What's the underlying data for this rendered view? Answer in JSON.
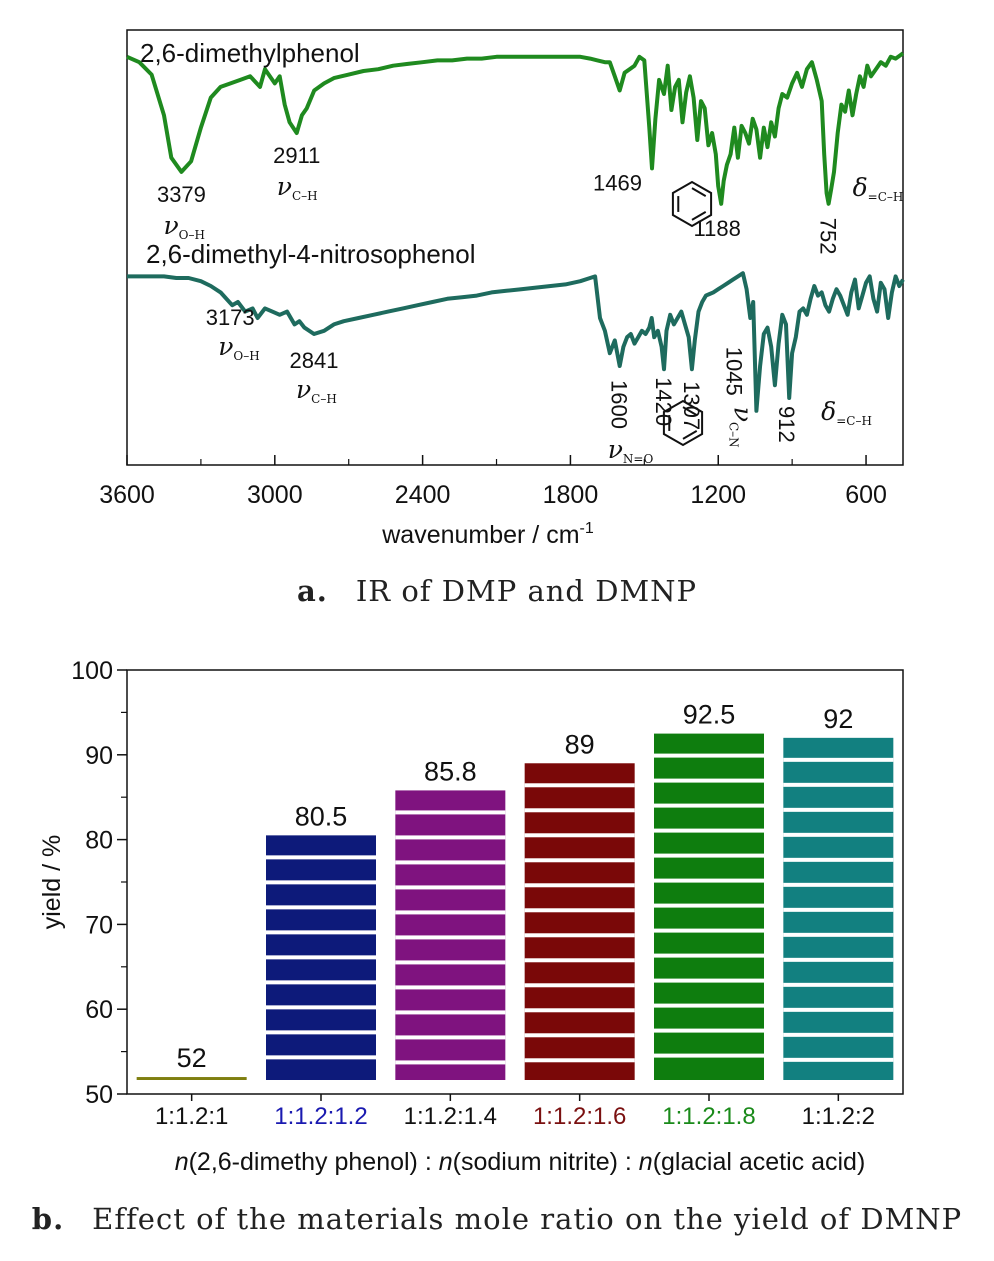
{
  "captions": {
    "a_letter": "a.",
    "a_text": "IR of DMP and DMNP",
    "b_letter": "b.",
    "b_text": "Effect of the materials mole ratio on the yield of DMNP"
  },
  "chart_data": [
    {
      "type": "line",
      "xlabel": "wavenumber / cm",
      "xlabel_sup": "-1",
      "xlim": [
        3600,
        450
      ],
      "x_ticks": [
        "3600",
        "3000",
        "2400",
        "1800",
        "1200",
        "600"
      ],
      "y_ticks_shown": false,
      "grid": false,
      "series": [
        {
          "name": "2,6-dimethylphenol",
          "color": "#1f8a1f",
          "x": [
            3600,
            3550,
            3500,
            3450,
            3420,
            3379,
            3340,
            3300,
            3260,
            3220,
            3180,
            3140,
            3100,
            3060,
            3040,
            3000,
            2980,
            2960,
            2940,
            2911,
            2890,
            2870,
            2840,
            2800,
            2760,
            2700,
            2640,
            2580,
            2520,
            2460,
            2400,
            2340,
            2280,
            2220,
            2160,
            2100,
            2040,
            1980,
            1920,
            1860,
            1800,
            1760,
            1720,
            1690,
            1660,
            1640,
            1620,
            1600,
            1580,
            1560,
            1540,
            1520,
            1500,
            1480,
            1469,
            1455,
            1440,
            1420,
            1405,
            1390,
            1375,
            1360,
            1345,
            1330,
            1315,
            1300,
            1285,
            1270,
            1255,
            1240,
            1225,
            1210,
            1200,
            1188,
            1178,
            1165,
            1150,
            1135,
            1120,
            1105,
            1090,
            1075,
            1060,
            1045,
            1030,
            1015,
            1000,
            985,
            970,
            955,
            940,
            920,
            900,
            880,
            860,
            840,
            820,
            800,
            780,
            770,
            760,
            752,
            742,
            730,
            715,
            700,
            685,
            670,
            655,
            640,
            625,
            610,
            595,
            580,
            560,
            540,
            520,
            500,
            480,
            460,
            450
          ],
          "y": [
            0.95,
            0.92,
            0.85,
            0.62,
            0.38,
            0.3,
            0.36,
            0.55,
            0.72,
            0.78,
            0.8,
            0.82,
            0.84,
            0.78,
            0.88,
            0.8,
            0.84,
            0.68,
            0.58,
            0.52,
            0.62,
            0.66,
            0.76,
            0.8,
            0.83,
            0.85,
            0.87,
            0.88,
            0.9,
            0.91,
            0.92,
            0.93,
            0.93,
            0.94,
            0.94,
            0.95,
            0.95,
            0.95,
            0.95,
            0.95,
            0.95,
            0.95,
            0.94,
            0.93,
            0.92,
            0.92,
            0.84,
            0.76,
            0.86,
            0.88,
            0.9,
            0.95,
            0.93,
            0.55,
            0.32,
            0.6,
            0.82,
            0.74,
            0.9,
            0.65,
            0.78,
            0.82,
            0.58,
            0.75,
            0.84,
            0.72,
            0.48,
            0.7,
            0.66,
            0.45,
            0.52,
            0.4,
            0.22,
            0.12,
            0.25,
            0.34,
            0.4,
            0.55,
            0.38,
            0.56,
            0.52,
            0.46,
            0.6,
            0.54,
            0.38,
            0.55,
            0.44,
            0.58,
            0.5,
            0.66,
            0.74,
            0.72,
            0.8,
            0.86,
            0.78,
            0.88,
            0.92,
            0.82,
            0.7,
            0.4,
            0.18,
            0.12,
            0.2,
            0.3,
            0.52,
            0.68,
            0.64,
            0.76,
            0.62,
            0.74,
            0.84,
            0.78,
            0.9,
            0.84,
            0.88,
            0.92,
            0.9,
            0.95,
            0.94,
            0.96,
            0.97
          ]
        },
        {
          "name": "2,6-dimethyl-4-nitrosophenol",
          "color": "#1e6b5e",
          "x": [
            3600,
            3550,
            3500,
            3450,
            3400,
            3350,
            3300,
            3260,
            3220,
            3173,
            3150,
            3120,
            3090,
            3070,
            3040,
            3010,
            2980,
            2950,
            2920,
            2900,
            2880,
            2841,
            2800,
            2760,
            2720,
            2660,
            2600,
            2540,
            2480,
            2420,
            2360,
            2300,
            2240,
            2180,
            2120,
            2060,
            2000,
            1940,
            1880,
            1820,
            1760,
            1720,
            1700,
            1680,
            1660,
            1640,
            1620,
            1600,
            1585,
            1570,
            1555,
            1540,
            1525,
            1510,
            1495,
            1480,
            1470,
            1460,
            1445,
            1430,
            1420,
            1410,
            1395,
            1380,
            1365,
            1350,
            1335,
            1320,
            1307,
            1295,
            1280,
            1265,
            1250,
            1235,
            1220,
            1200,
            1180,
            1160,
            1140,
            1120,
            1100,
            1085,
            1070,
            1058,
            1045,
            1030,
            1015,
            1000,
            985,
            970,
            955,
            940,
            925,
            912,
            900,
            885,
            870,
            855,
            840,
            825,
            810,
            795,
            780,
            765,
            750,
            735,
            720,
            705,
            690,
            675,
            660,
            645,
            630,
            615,
            600,
            585,
            570,
            555,
            540,
            525,
            510,
            495,
            480,
            465,
            450
          ],
          "y": [
            0.96,
            0.96,
            0.96,
            0.96,
            0.95,
            0.95,
            0.93,
            0.9,
            0.86,
            0.78,
            0.8,
            0.74,
            0.76,
            0.7,
            0.76,
            0.74,
            0.72,
            0.74,
            0.66,
            0.68,
            0.64,
            0.6,
            0.62,
            0.66,
            0.68,
            0.7,
            0.72,
            0.74,
            0.76,
            0.78,
            0.8,
            0.82,
            0.83,
            0.84,
            0.86,
            0.87,
            0.88,
            0.89,
            0.9,
            0.91,
            0.93,
            0.95,
            0.96,
            0.7,
            0.62,
            0.48,
            0.56,
            0.4,
            0.52,
            0.58,
            0.6,
            0.54,
            0.58,
            0.62,
            0.6,
            0.64,
            0.7,
            0.58,
            0.62,
            0.52,
            0.38,
            0.62,
            0.72,
            0.66,
            0.7,
            0.74,
            0.66,
            0.58,
            0.38,
            0.56,
            0.74,
            0.8,
            0.84,
            0.85,
            0.86,
            0.88,
            0.9,
            0.92,
            0.94,
            0.96,
            0.98,
            0.88,
            0.7,
            0.8,
            0.12,
            0.4,
            0.6,
            0.64,
            0.52,
            0.28,
            0.54,
            0.72,
            0.66,
            0.2,
            0.48,
            0.58,
            0.74,
            0.76,
            0.72,
            0.82,
            0.9,
            0.84,
            0.86,
            0.78,
            0.74,
            0.82,
            0.88,
            0.84,
            0.78,
            0.72,
            0.86,
            0.94,
            0.76,
            0.84,
            0.92,
            0.96,
            0.82,
            0.74,
            0.92,
            0.88,
            0.7,
            0.86,
            0.96,
            0.9,
            0.94
          ]
        }
      ],
      "annotations": [
        {
          "series": 0,
          "x": 3379,
          "text": "3379",
          "symbol": "ν",
          "subscript": "O–H"
        },
        {
          "series": 0,
          "x": 2911,
          "text": "2911",
          "symbol": "ν",
          "subscript": "C–H"
        },
        {
          "series": 0,
          "x": 1469,
          "text": "1469"
        },
        {
          "series": 0,
          "x": 1188,
          "text": "1188"
        },
        {
          "series": 0,
          "x": 752,
          "text": "752",
          "symbol": "δ",
          "subscript": "=C–H"
        },
        {
          "series": 1,
          "x": 3173,
          "text": "3173",
          "symbol": "ν",
          "subscript": "O–H"
        },
        {
          "series": 1,
          "x": 2841,
          "text": "2841",
          "symbol": "ν",
          "subscript": "C–H"
        },
        {
          "series": 1,
          "x": 1600,
          "text": "1600",
          "symbol": "ν",
          "subscript": "N=O"
        },
        {
          "series": 1,
          "x": 1420,
          "text": "1420"
        },
        {
          "series": 1,
          "x": 1307,
          "text": "1307"
        },
        {
          "series": 1,
          "x": 1045,
          "text": "1045",
          "symbol": "ν",
          "subscript": "C–N"
        },
        {
          "series": 1,
          "x": 912,
          "text": "912",
          "symbol": "δ",
          "subscript": "=C–H"
        }
      ]
    },
    {
      "type": "bar",
      "categories": [
        "1:1.2:1",
        "1:1.2:1.2",
        "1:1.2:1.4",
        "1:1.2:1.6",
        "1:1.2:1.8",
        "1:1.2:2"
      ],
      "category_colors": [
        "#111111",
        "#1a1ab0",
        "#111111",
        "#7a1010",
        "#1a8a1a",
        "#111111"
      ],
      "values": [
        52,
        80.5,
        85.8,
        89,
        92.5,
        92
      ],
      "value_labels": [
        "52",
        "80.5",
        "85.8",
        "89",
        "92.5",
        "92"
      ],
      "bar_colors": [
        "#7f7f10",
        "#0d1a7a",
        "#7f137f",
        "#7a0808",
        "#0e7d0e",
        "#128080"
      ],
      "ylabel": "yield / %",
      "xlabel_parts": [
        {
          "t": "n",
          "i": true
        },
        {
          "t": "(2,6-dimethy phenol) : ",
          "i": false
        },
        {
          "t": "n",
          "i": true
        },
        {
          "t": "(sodium nitrite) : ",
          "i": false
        },
        {
          "t": "n",
          "i": true
        },
        {
          "t": "(glacial acetic acid)",
          "i": false
        }
      ],
      "ylim": [
        50,
        100
      ],
      "y_ticks": [
        "50",
        "60",
        "70",
        "80",
        "90",
        "100"
      ],
      "grid": false
    }
  ]
}
